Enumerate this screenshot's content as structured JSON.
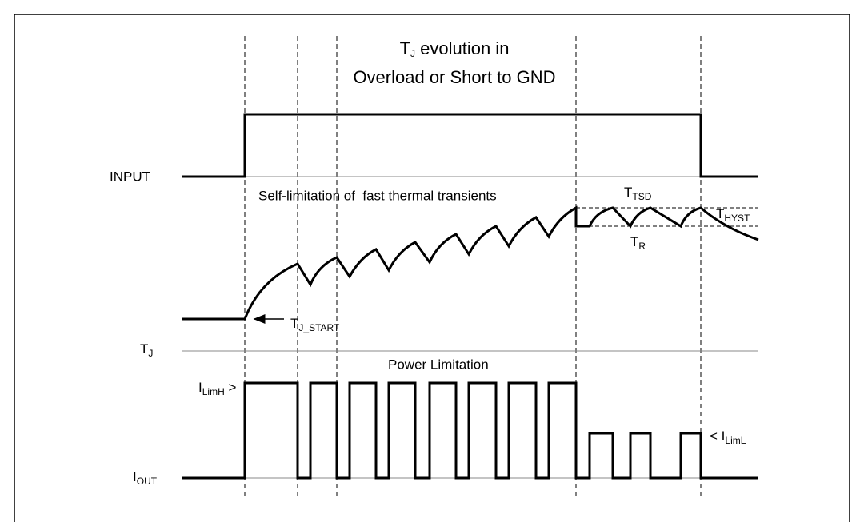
{
  "title": {
    "line1": {
      "main": "T",
      "sub": "J",
      "rest": " evolution in"
    },
    "line2": "Overload or Short to GND"
  },
  "labels": {
    "input": "INPUT",
    "tj": {
      "main": "T",
      "sub": "J"
    },
    "iout": {
      "main": "I",
      "sub": "OUT"
    },
    "self_limitation": "Self-limitation of  fast thermal transients",
    "ttsd": {
      "main": "T",
      "sub": "TSD"
    },
    "thyst": {
      "main": "T",
      "sub": "HYST"
    },
    "tr": {
      "main": "T",
      "sub": "R"
    },
    "tj_start": {
      "main": "T",
      "sub": "J_START"
    },
    "power_limitation": "Power Limitation",
    "ilimh": {
      "main": "I",
      "sub": "LimH",
      "rest": " >"
    },
    "iliml": {
      "prefix": "< ",
      "main": "I",
      "sub": "LimL"
    }
  }
}
